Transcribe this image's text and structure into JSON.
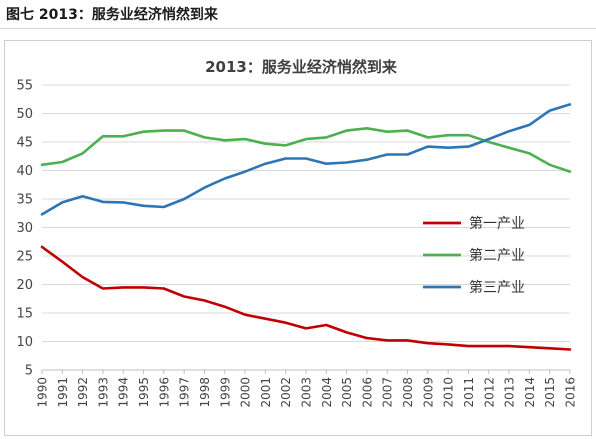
{
  "caption": "图七 2013：服务业经济悄然到来",
  "chart_data": {
    "type": "line",
    "title": "2013：服务业经济悄然到来",
    "xlabel": "",
    "ylabel": "",
    "ylim": [
      5,
      55
    ],
    "yticks": [
      5,
      10,
      15,
      20,
      25,
      30,
      35,
      40,
      45,
      50,
      55
    ],
    "grid": "horizontal",
    "legend_position": "right-middle",
    "x": [
      1990,
      1991,
      1992,
      1993,
      1994,
      1995,
      1996,
      1997,
      1998,
      1999,
      2000,
      2001,
      2002,
      2003,
      2004,
      2005,
      2006,
      2007,
      2008,
      2009,
      2010,
      2011,
      2012,
      2013,
      2014,
      2015,
      2016
    ],
    "series": [
      {
        "name": "第一产业",
        "color": "#c00000",
        "values": [
          26.6,
          24.0,
          21.3,
          19.3,
          19.5,
          19.5,
          19.3,
          17.9,
          17.2,
          16.1,
          14.7,
          14.0,
          13.3,
          12.3,
          12.9,
          11.6,
          10.6,
          10.2,
          10.2,
          9.7,
          9.5,
          9.2,
          9.2,
          9.2,
          9.0,
          8.8,
          8.6
        ]
      },
      {
        "name": "第二产业",
        "color": "#4caf50",
        "values": [
          41.0,
          41.5,
          43.0,
          46.0,
          46.0,
          46.8,
          47.0,
          47.0,
          45.8,
          45.3,
          45.5,
          44.7,
          44.4,
          45.5,
          45.8,
          47.0,
          47.4,
          46.8,
          47.0,
          45.8,
          46.2,
          46.2,
          45.0,
          44.0,
          43.0,
          41.0,
          39.8
        ]
      },
      {
        "name": "第三产业",
        "color": "#2e75b6",
        "values": [
          32.3,
          34.4,
          35.5,
          34.5,
          34.4,
          33.8,
          33.6,
          35.0,
          37.0,
          38.6,
          39.8,
          41.2,
          42.1,
          42.1,
          41.2,
          41.4,
          41.9,
          42.8,
          42.8,
          44.2,
          44.0,
          44.2,
          45.5,
          46.9,
          48.0,
          50.5,
          51.6
        ]
      }
    ]
  }
}
